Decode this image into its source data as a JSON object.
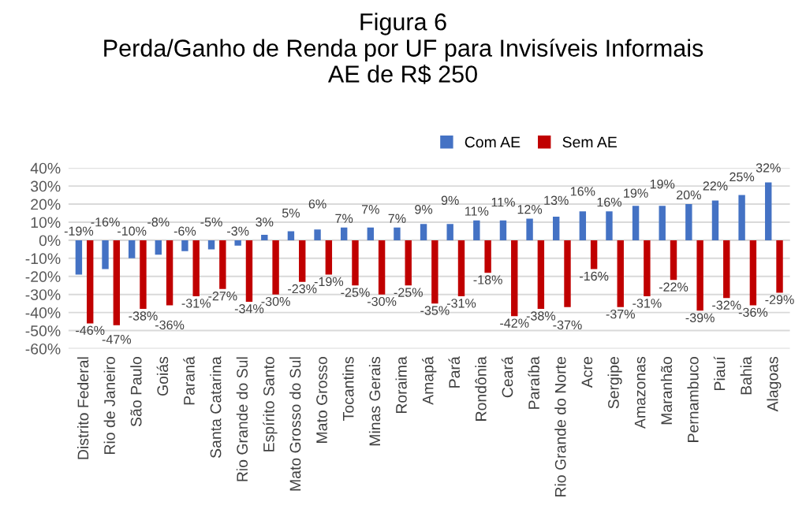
{
  "chart_data": {
    "type": "bar",
    "title": "Figura 6\nPerda/Ganho de Renda por UF para Invisíveis Informais\nAE de R$ 250",
    "categories": [
      "Distrito Federal",
      "Rio de Janeiro",
      "São Paulo",
      "Goiás",
      "Paraná",
      "Santa Catarina",
      "Rio Grande do Sul",
      "Espírito Santo",
      "Mato Grosso do Sul",
      "Mato Grosso",
      "Tocantins",
      "Minas Gerais",
      "Roraima",
      "Amapá",
      "Pará",
      "Rondônia",
      "Ceará",
      "Paraíba",
      "Rio Grande do Norte",
      "Acre",
      "Sergipe",
      "Amazonas",
      "Maranhão",
      "Pernambuco",
      "Piauí",
      "Bahia",
      "Alagoas"
    ],
    "series": [
      {
        "name": "Com AE",
        "color": "#4472c4",
        "values": [
          -19,
          -16,
          -10,
          -8,
          -6,
          -5,
          -3,
          3,
          5,
          6,
          7,
          7,
          7,
          9,
          9,
          11,
          11,
          12,
          13,
          16,
          16,
          19,
          19,
          20,
          22,
          25,
          32
        ],
        "value_labels": [
          "-19%",
          "-16%",
          "-10%",
          "-8%",
          "-6%",
          "-5%",
          "-3%",
          "3%",
          "5%",
          "6%",
          "7%",
          "7%",
          "7%",
          "9%",
          "9%",
          "11%",
          "11%",
          "12%",
          "13%",
          "16%",
          "16%",
          "19%",
          "19%",
          "20%",
          "22%",
          "25%",
          "32%"
        ]
      },
      {
        "name": "Sem AE",
        "color": "#c00000",
        "values": [
          -46,
          -47,
          -38,
          -36,
          -31,
          -27,
          -34,
          -30,
          -23,
          -19,
          -25,
          -30,
          -25,
          -35,
          -31,
          -18,
          -42,
          -38,
          -37,
          -16,
          -37,
          -31,
          -22,
          -39,
          -32,
          -36,
          -29
        ],
        "value_labels": [
          "-46%",
          "-47%",
          "-38%",
          "-36%",
          "-31%",
          "-27%",
          "-34%",
          "-30%",
          "-23%",
          "-19%",
          "-25%",
          "-30%",
          "-25%",
          "-35%",
          "-31%",
          "-18%",
          "-42%",
          "-38%",
          "-37%",
          "-16%",
          "-37%",
          "-31%",
          "-22%",
          "-39%",
          "-32%",
          "-36%",
          "-29%"
        ]
      }
    ],
    "ylim": [
      -60,
      40
    ],
    "yticks": [
      {
        "value": -60,
        "label": "-60%"
      },
      {
        "value": -50,
        "label": "-50%"
      },
      {
        "value": -40,
        "label": "-40%"
      },
      {
        "value": -30,
        "label": "-30%"
      },
      {
        "value": -20,
        "label": "-20%"
      },
      {
        "value": -10,
        "label": "-10%"
      },
      {
        "value": 0,
        "label": "0%"
      },
      {
        "value": 10,
        "label": "10%"
      },
      {
        "value": 20,
        "label": "20%"
      },
      {
        "value": 30,
        "label": "30%"
      },
      {
        "value": 40,
        "label": "40%"
      }
    ],
    "grid": "y",
    "legend": "top right"
  }
}
